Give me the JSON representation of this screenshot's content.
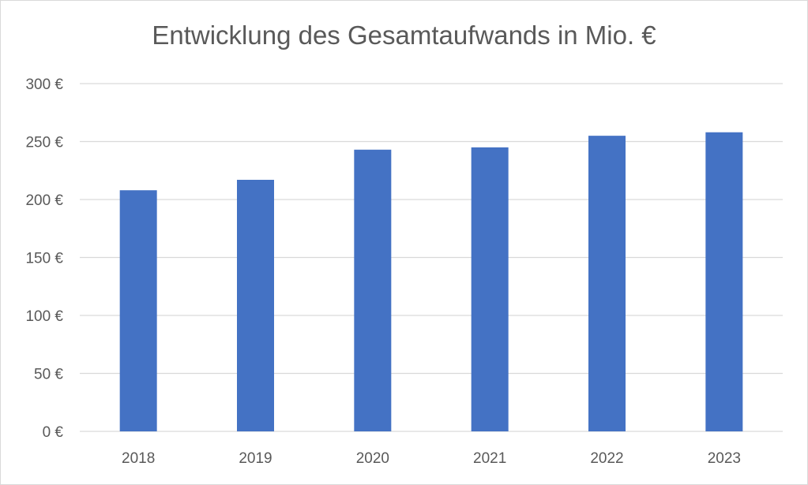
{
  "chart_data": {
    "type": "bar",
    "title": "Entwicklung des Gesamtaufwands in Mio. €",
    "categories": [
      "2018",
      "2019",
      "2020",
      "2021",
      "2022",
      "2023"
    ],
    "values": [
      208,
      217,
      243,
      245,
      255,
      258
    ],
    "ylim": [
      0,
      300
    ],
    "yticks": [
      0,
      50,
      100,
      150,
      200,
      250,
      300
    ],
    "ytick_labels": [
      "0 €",
      "50 €",
      "100 €",
      "150 €",
      "200 €",
      "250 €",
      "300 €"
    ],
    "xlabel": "",
    "ylabel": "",
    "grid": true,
    "legend": "none",
    "colors": {
      "bar": "#4472c4",
      "grid": "#d9d9d9",
      "text": "#595959"
    }
  }
}
